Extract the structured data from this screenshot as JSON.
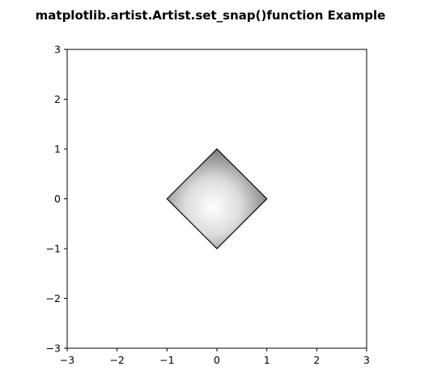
{
  "chart_data": {
    "type": "scatter",
    "title": "matplotlib.artist.Artist.set_snap()function Example",
    "xlabel": "",
    "ylabel": "",
    "xlim": [
      -3,
      3
    ],
    "ylim": [
      -3,
      3
    ],
    "grid": false,
    "x_ticks": [
      -3,
      -2,
      -1,
      0,
      1,
      2,
      3
    ],
    "y_ticks": [
      -3,
      -2,
      -1,
      0,
      1,
      2,
      3
    ],
    "x_tick_labels": [
      "−3",
      "−2",
      "−1",
      "0",
      "1",
      "2",
      "3"
    ],
    "y_tick_labels": [
      "−3",
      "−2",
      "−1",
      "0",
      "1",
      "2",
      "3"
    ],
    "shape": {
      "kind": "diamond",
      "vertices": [
        [
          -1,
          0
        ],
        [
          0,
          1
        ],
        [
          1,
          0
        ],
        [
          0,
          -1
        ]
      ],
      "fill": "radial-gradient-gray",
      "edge_color": "#000000",
      "gradient_colors": [
        "#ffffff",
        "#6e6e6e"
      ]
    }
  }
}
